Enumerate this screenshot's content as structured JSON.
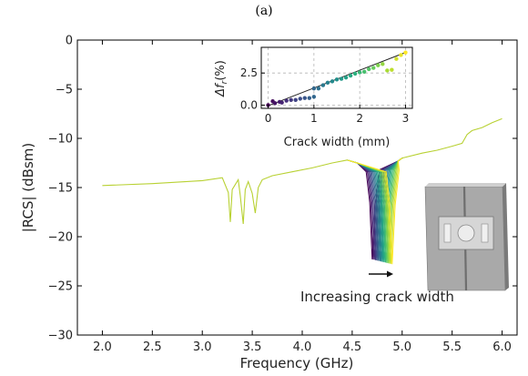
{
  "panel_label": "(a)",
  "annotation": "Increasing crack width",
  "colors": {
    "palette": [
      "#440154",
      "#472d7b",
      "#3b528b",
      "#2c728e",
      "#21918c",
      "#28ae80",
      "#5ec962",
      "#addc30",
      "#fde725"
    ],
    "baseline": "#b8d132",
    "fit_line": "#222222",
    "model_light": "#c8c8c8",
    "model_dark": "#8a8a8a"
  },
  "chart_data": [
    {
      "type": "line",
      "title": "",
      "xlabel": "Frequency (GHz)",
      "ylabel": "|RCS| (dBsm)",
      "xlim": [
        1.75,
        6.15
      ],
      "ylim": [
        -30,
        0
      ],
      "xticks": [
        2.0,
        2.5,
        3.0,
        3.5,
        4.0,
        4.5,
        5.0,
        5.5,
        6.0
      ],
      "xtick_labels": [
        "2.0",
        "2.5",
        "3.0",
        "3.5",
        "4.0",
        "4.5",
        "5.0",
        "5.5",
        "6.0"
      ],
      "yticks": [
        -30,
        -25,
        -20,
        -15,
        -10,
        -5,
        0
      ],
      "ytick_labels": [
        "−30",
        "−25",
        "−20",
        "−15",
        "−10",
        "−5",
        "0"
      ],
      "grid": false,
      "baseline_series": {
        "x": [
          2.0,
          2.5,
          3.0,
          3.2,
          3.26,
          3.28,
          3.3,
          3.36,
          3.38,
          3.41,
          3.43,
          3.46,
          3.5,
          3.53,
          3.56,
          3.6,
          3.7,
          3.9,
          4.1,
          4.3,
          4.45
        ],
        "y": [
          -14.8,
          -14.6,
          -14.3,
          -14.0,
          -15.5,
          -18.5,
          -15.2,
          -14.2,
          -15.8,
          -18.7,
          -15.2,
          -14.4,
          -15.6,
          -17.6,
          -15.0,
          -14.2,
          -13.8,
          -13.4,
          -13.0,
          -12.5,
          -12.2
        ]
      },
      "tail_series": {
        "x": [
          5.0,
          5.2,
          5.35,
          5.5,
          5.6,
          5.65,
          5.7,
          5.8,
          5.9,
          6.0
        ],
        "y": [
          -12.0,
          -11.5,
          -11.2,
          -10.8,
          -10.5,
          -9.6,
          -9.2,
          -8.9,
          -8.4,
          -8.0
        ]
      },
      "dip_series": {
        "count": 19,
        "dip_freq_range": [
          4.7,
          4.9
        ],
        "dip_depth_range": [
          -22.3,
          -22.8
        ],
        "shoulder_left": {
          "x": 4.45,
          "y": -12.2
        },
        "shoulder_right": {
          "x": 5.0,
          "y": -12.0
        }
      }
    },
    {
      "type": "scatter",
      "title": "",
      "xlabel": "Crack width (mm)",
      "ylabel": "Δf_r(%)",
      "ylabel_main": "Δf",
      "ylabel_sub": "r",
      "ylabel_suffix": "(%)",
      "xlim": [
        -0.15,
        3.15
      ],
      "ylim": [
        -0.25,
        4.5
      ],
      "xticks": [
        0,
        1,
        2,
        3
      ],
      "xtick_labels": [
        "0",
        "1",
        "2",
        "3"
      ],
      "yticks": [
        0.0,
        2.5
      ],
      "ytick_labels": [
        "0.0",
        "2.5"
      ],
      "grid": true,
      "points": {
        "x": [
          0.0,
          0.1,
          0.15,
          0.25,
          0.3,
          0.4,
          0.5,
          0.6,
          0.7,
          0.8,
          0.9,
          1.0,
          1.0,
          1.1,
          1.2,
          1.3,
          1.4,
          1.5,
          1.6,
          1.7,
          1.8,
          1.9,
          2.0,
          2.1,
          2.2,
          2.3,
          2.4,
          2.5,
          2.6,
          2.7,
          2.8,
          2.9,
          3.0
        ],
        "y": [
          0.0,
          0.3,
          0.15,
          0.25,
          0.2,
          0.35,
          0.4,
          0.4,
          0.5,
          0.55,
          0.55,
          0.65,
          1.3,
          1.3,
          1.55,
          1.75,
          1.85,
          2.0,
          2.05,
          2.15,
          2.3,
          2.45,
          2.55,
          2.6,
          2.8,
          2.9,
          3.1,
          3.2,
          2.7,
          2.75,
          3.6,
          3.9,
          4.1
        ]
      },
      "fit": {
        "x": [
          0,
          3.0
        ],
        "y": [
          -0.05,
          4.1
        ]
      }
    }
  ]
}
